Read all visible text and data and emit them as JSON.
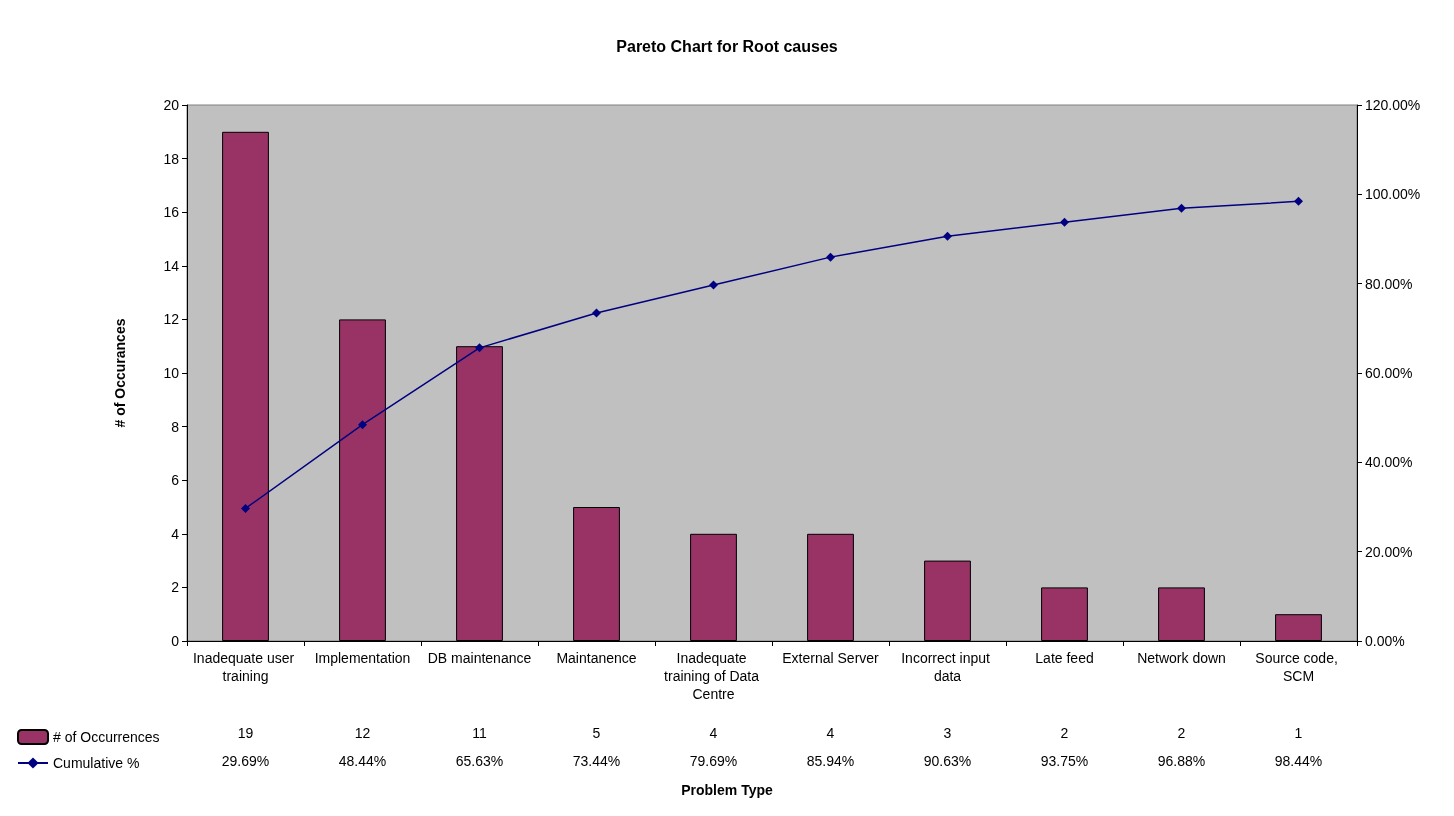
{
  "chart_data": {
    "type": "bar",
    "title": "Pareto Chart for Root causes",
    "annotations": [
      "Problem Type"
    ],
    "ylabel": "# of Occurances",
    "categories": [
      "Inadequate user training",
      "Implementation",
      "DB maintenance",
      "Maintanence",
      "Inadequate training of Data Centre",
      "External Server",
      "Incorrect input data",
      "Late feed",
      "Network down",
      "Source code, SCM"
    ],
    "series": [
      {
        "name": "# of Occurrences",
        "color": "#993366",
        "values": [
          19,
          12,
          11,
          5,
          4,
          4,
          3,
          2,
          2,
          1
        ],
        "value_labels": [
          "19",
          "12",
          "11",
          "5",
          "4",
          "4",
          "3",
          "2",
          "2",
          "1"
        ]
      },
      {
        "name": "Cumulative %",
        "type": "line",
        "axis": "y2",
        "color": "#000080",
        "marker": "diamond",
        "values": [
          29.69,
          48.44,
          65.63,
          73.44,
          79.69,
          85.94,
          90.63,
          93.75,
          96.88,
          98.44
        ],
        "value_labels": [
          "29.69%",
          "48.44%",
          "65.63%",
          "73.44%",
          "79.69%",
          "85.94%",
          "90.63%",
          "93.75%",
          "96.88%",
          "98.44%"
        ]
      }
    ],
    "ylim": [
      0,
      20
    ],
    "yticks": [
      0,
      2,
      4,
      6,
      8,
      10,
      12,
      14,
      16,
      18,
      20
    ],
    "y2lim": [
      0,
      120
    ],
    "y2ticks": [
      {
        "value": 0,
        "label": "0.00%"
      },
      {
        "value": 20,
        "label": "20.00%"
      },
      {
        "value": 40,
        "label": "40.00%"
      },
      {
        "value": 60,
        "label": "60.00%"
      },
      {
        "value": 80,
        "label": "80.00%"
      },
      {
        "value": 100,
        "label": "100.00%"
      },
      {
        "value": 120,
        "label": "120.00%"
      }
    ],
    "grid": false,
    "legend": "bottom left"
  }
}
